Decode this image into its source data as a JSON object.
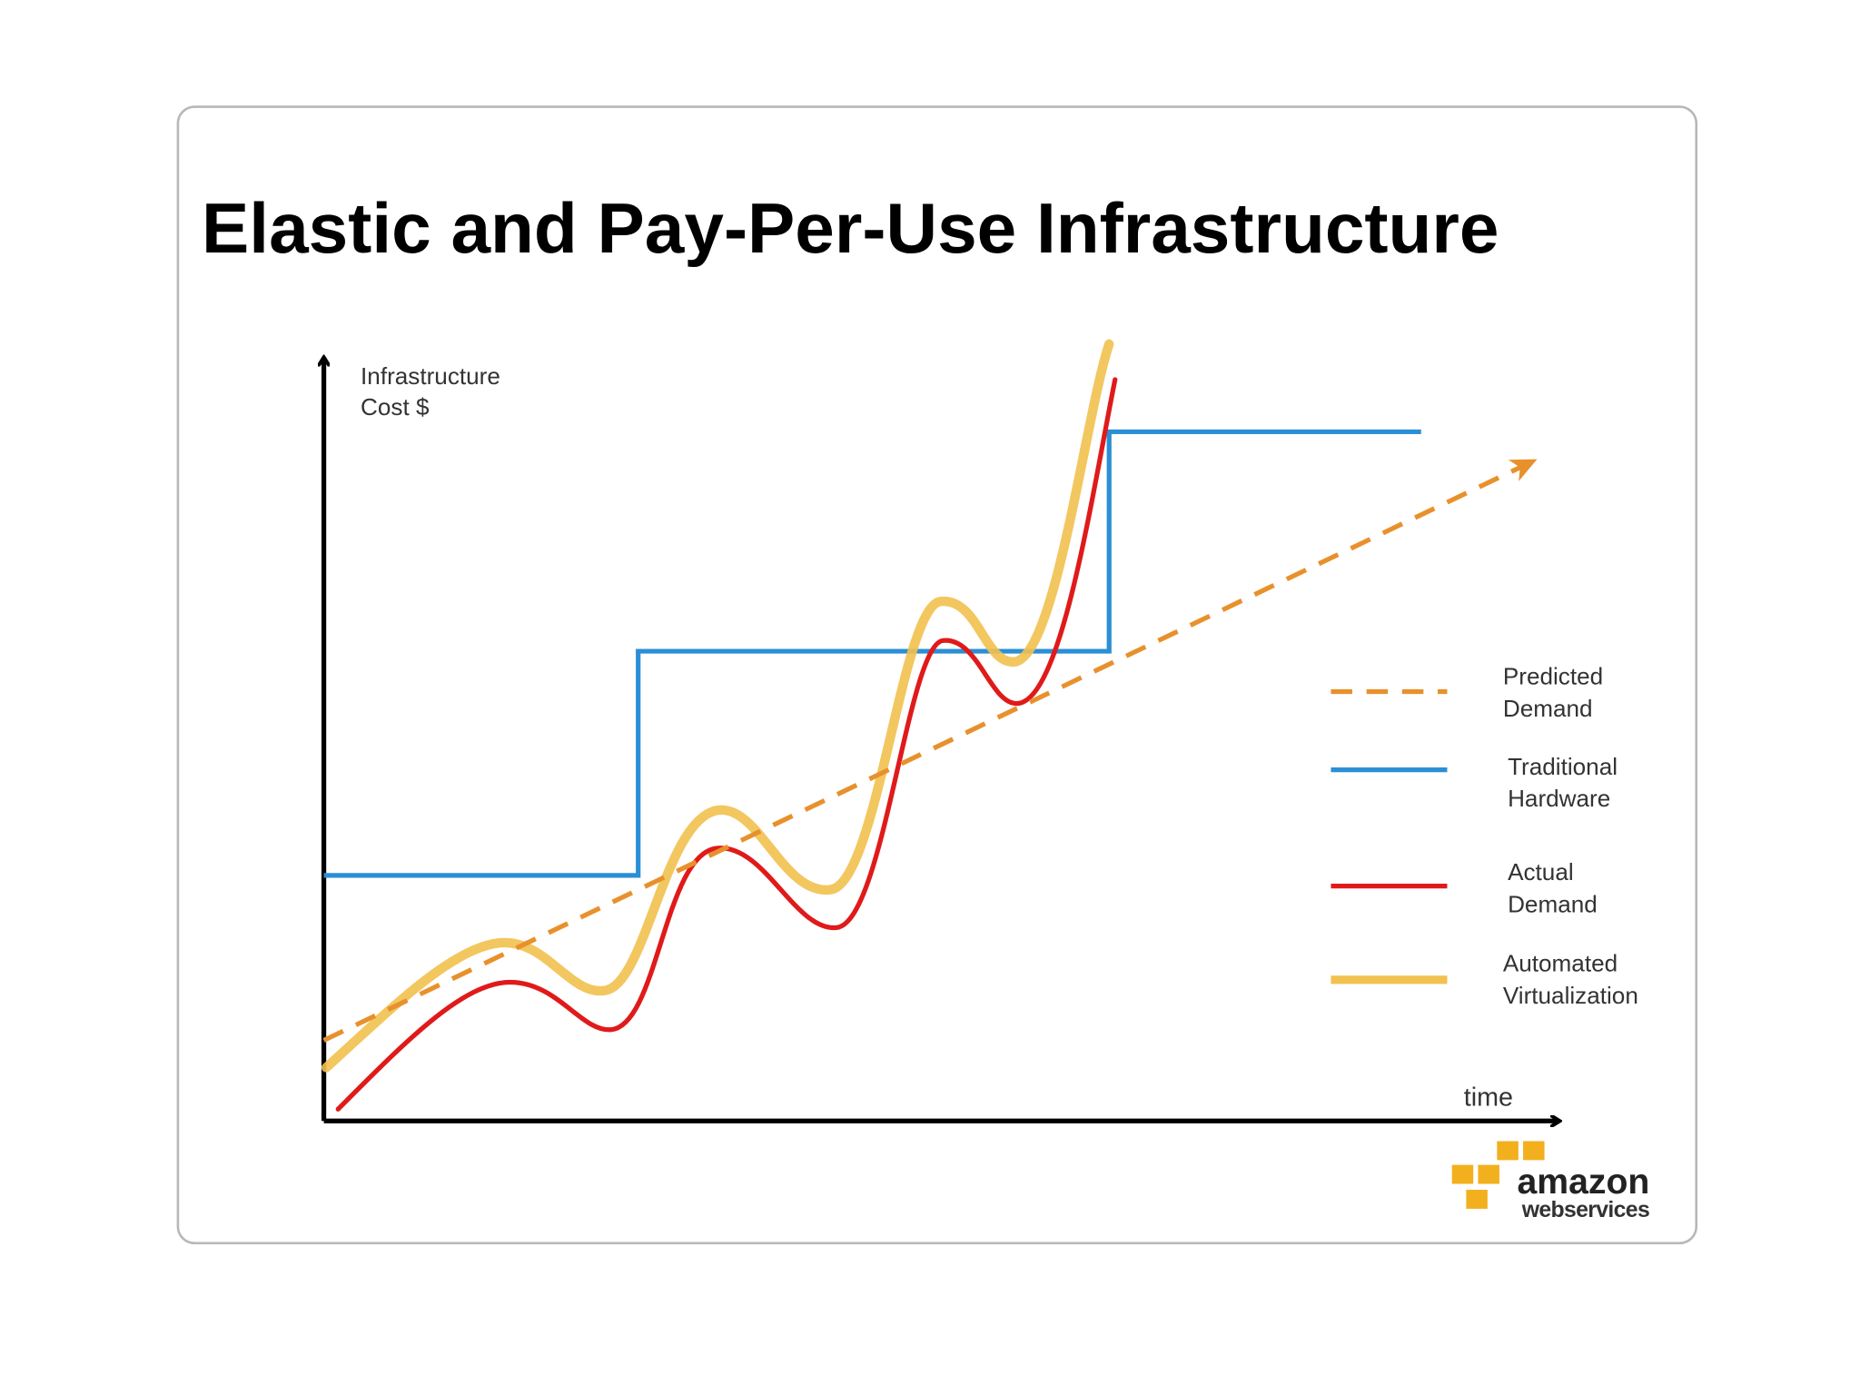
{
  "title": "Elastic and Pay-Per-Use Infrastructure",
  "y_axis_label": [
    "Infrastructure",
    "Cost $"
  ],
  "x_axis_label": "time",
  "legend": [
    [
      "Predicted",
      "Demand"
    ],
    [
      "Traditional",
      "Hardware"
    ],
    [
      "Actual",
      "Demand"
    ],
    [
      "Automated",
      "Virtualization"
    ]
  ],
  "logo": {
    "name": "amazon",
    "subtitle": "webservices"
  }
}
